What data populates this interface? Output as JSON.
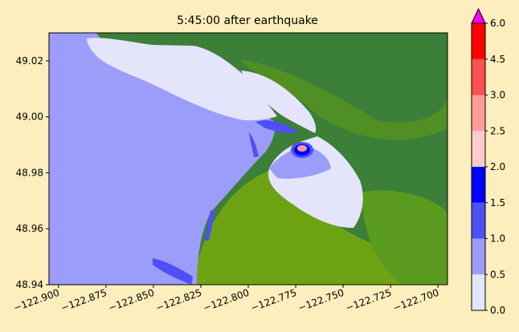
{
  "chart_data": {
    "type": "heatmap",
    "title": "5:45:00 after earthquake",
    "xlim": [
      -122.905,
      -122.695
    ],
    "ylim": [
      48.94,
      49.03
    ],
    "x_ticks": [
      -122.9,
      -122.875,
      -122.85,
      -122.825,
      -122.8,
      -122.775,
      -122.75,
      -122.725,
      -122.7
    ],
    "x_tick_labels": [
      "−122.900",
      "−122.875",
      "−122.850",
      "−122.825",
      "−122.800",
      "−122.775",
      "−122.750",
      "−122.725",
      "−122.700"
    ],
    "y_ticks": [
      48.94,
      48.96,
      48.98,
      49.0,
      49.02
    ],
    "y_tick_labels": [
      "48.94",
      "48.96",
      "48.98",
      "49.00",
      "49.02"
    ],
    "colorbar": {
      "levels": [
        0.0,
        0.5,
        1.0,
        1.5,
        2.0,
        2.5,
        3.0,
        4.5,
        6.0
      ],
      "labels": [
        "0.0",
        "0.5",
        "1.0",
        "1.5",
        "2.0",
        "2.5",
        "3.0",
        "4.5",
        "6.0"
      ],
      "colors": [
        "#e4e4fb",
        "#9c9cfb",
        "#4f4ff6",
        "#0000ff",
        "#ffcccc",
        "#ff9b9b",
        "#ff4f4f",
        "#ff0000"
      ],
      "extend_max_color": "#ff00ff"
    },
    "colors": {
      "land_dark": "#3b7f38",
      "land_light": "#6da313",
      "land_mid": "#4f8f24",
      "background": "#fdeebd"
    }
  }
}
